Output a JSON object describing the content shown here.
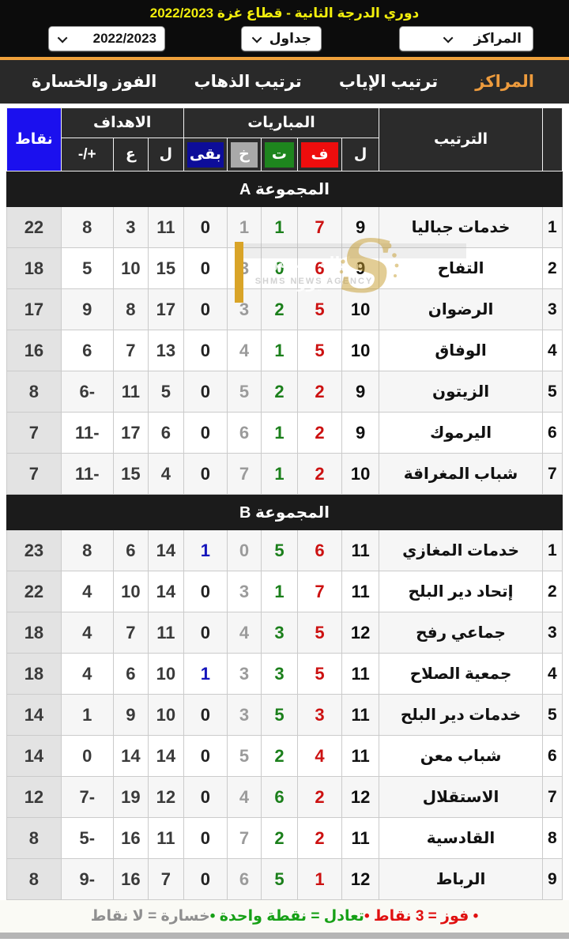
{
  "page": {
    "title": "دوري الدرجة الثانية - قطاع غزة 2022/2023"
  },
  "filters": {
    "standings": "المراكز",
    "view": "جداول",
    "season": "2022/2023"
  },
  "tabs": [
    {
      "label": "المراكز",
      "active": true
    },
    {
      "label": "ترتيب الإياب",
      "active": false
    },
    {
      "label": "ترتيب الذهاب",
      "active": false
    },
    {
      "label": "الفوز والخسارة",
      "active": false
    }
  ],
  "colors": {
    "title_yellow": "#f2ee0c",
    "accent_orange": "#efa13b",
    "win_red": "#ee0d0d",
    "draw_green": "#1e851e",
    "loss_gray": "#a9a9a9",
    "remaining_navy": "#0d0d99",
    "points_blue": "#1b10ee"
  },
  "table": {
    "headers": {
      "rank_group": "الترتيب",
      "matches_group": "المباريات",
      "goals_group": "الاهداف",
      "points": "نقاط",
      "sub": {
        "played": "ل",
        "won": "ف",
        "draw": "ت",
        "lost": "خ",
        "remaining": "بقى",
        "goals_for": "ل",
        "goals_against": "ع",
        "diff": "+/-"
      }
    },
    "groups": [
      {
        "name": "المجموعة A",
        "rows": [
          {
            "rank": 1,
            "team": "خدمات جباليا",
            "played": 9,
            "won": 7,
            "draw": 1,
            "lost": 1,
            "remaining": 0,
            "goals_for": 11,
            "goals_against": 3,
            "diff": 8,
            "points": 22
          },
          {
            "rank": 2,
            "team": "التفاح",
            "played": 9,
            "won": 6,
            "draw": 0,
            "lost": 3,
            "remaining": 0,
            "goals_for": 15,
            "goals_against": 10,
            "diff": 5,
            "points": 18
          },
          {
            "rank": 3,
            "team": "الرضوان",
            "played": 10,
            "won": 5,
            "draw": 2,
            "lost": 3,
            "remaining": 0,
            "goals_for": 17,
            "goals_against": 8,
            "diff": 9,
            "points": 17
          },
          {
            "rank": 4,
            "team": "الوفاق",
            "played": 10,
            "won": 5,
            "draw": 1,
            "lost": 4,
            "remaining": 0,
            "goals_for": 13,
            "goals_against": 7,
            "diff": 6,
            "points": 16
          },
          {
            "rank": 5,
            "team": "الزيتون",
            "played": 9,
            "won": 2,
            "draw": 2,
            "lost": 5,
            "remaining": 0,
            "goals_for": 5,
            "goals_against": 11,
            "diff": -6,
            "points": 8
          },
          {
            "rank": 6,
            "team": "اليرموك",
            "played": 9,
            "won": 2,
            "draw": 1,
            "lost": 6,
            "remaining": 0,
            "goals_for": 6,
            "goals_against": 17,
            "diff": -11,
            "points": 7
          },
          {
            "rank": 7,
            "team": "شباب المغراقة",
            "played": 10,
            "won": 2,
            "draw": 1,
            "lost": 7,
            "remaining": 0,
            "goals_for": 4,
            "goals_against": 15,
            "diff": -11,
            "points": 7
          }
        ]
      },
      {
        "name": "المجموعة B",
        "rows": [
          {
            "rank": 1,
            "team": "خدمات المغازي",
            "played": 11,
            "won": 6,
            "draw": 5,
            "lost": 0,
            "remaining": 1,
            "goals_for": 14,
            "goals_against": 6,
            "diff": 8,
            "points": 23
          },
          {
            "rank": 2,
            "team": "إتحاد دير البلح",
            "played": 11,
            "won": 7,
            "draw": 1,
            "lost": 3,
            "remaining": 0,
            "goals_for": 14,
            "goals_against": 10,
            "diff": 4,
            "points": 22
          },
          {
            "rank": 3,
            "team": "جماعي رفح",
            "played": 12,
            "won": 5,
            "draw": 3,
            "lost": 4,
            "remaining": 0,
            "goals_for": 11,
            "goals_against": 7,
            "diff": 4,
            "points": 18
          },
          {
            "rank": 4,
            "team": "جمعية الصلاح",
            "played": 11,
            "won": 5,
            "draw": 3,
            "lost": 3,
            "remaining": 1,
            "goals_for": 10,
            "goals_against": 6,
            "diff": 4,
            "points": 18
          },
          {
            "rank": 5,
            "team": "خدمات دير البلح",
            "played": 11,
            "won": 3,
            "draw": 5,
            "lost": 3,
            "remaining": 0,
            "goals_for": 10,
            "goals_against": 9,
            "diff": 1,
            "points": 14
          },
          {
            "rank": 6,
            "team": "شباب معن",
            "played": 11,
            "won": 4,
            "draw": 2,
            "lost": 5,
            "remaining": 0,
            "goals_for": 14,
            "goals_against": 14,
            "diff": 0,
            "points": 14
          },
          {
            "rank": 7,
            "team": "الاستقلال",
            "played": 12,
            "won": 2,
            "draw": 6,
            "lost": 4,
            "remaining": 0,
            "goals_for": 12,
            "goals_against": 19,
            "diff": -7,
            "points": 12
          },
          {
            "rank": 8,
            "team": "القادسية",
            "played": 11,
            "won": 2,
            "draw": 2,
            "lost": 7,
            "remaining": 0,
            "goals_for": 11,
            "goals_against": 16,
            "diff": -5,
            "points": 8
          },
          {
            "rank": 9,
            "team": "الرباط",
            "played": 12,
            "won": 1,
            "draw": 5,
            "lost": 6,
            "remaining": 0,
            "goals_for": 7,
            "goals_against": 16,
            "diff": -9,
            "points": 8
          }
        ]
      }
    ]
  },
  "legend": {
    "win": "• فوز = 3 نقاط • ",
    "draw": "تعادل = نقطة واحدة • ",
    "loss": "خسارة = لا نقاط"
  },
  "watermark": {
    "arabic": "وكالة شمس نيوز",
    "latin": "SHMS NEWS AGENCY"
  }
}
